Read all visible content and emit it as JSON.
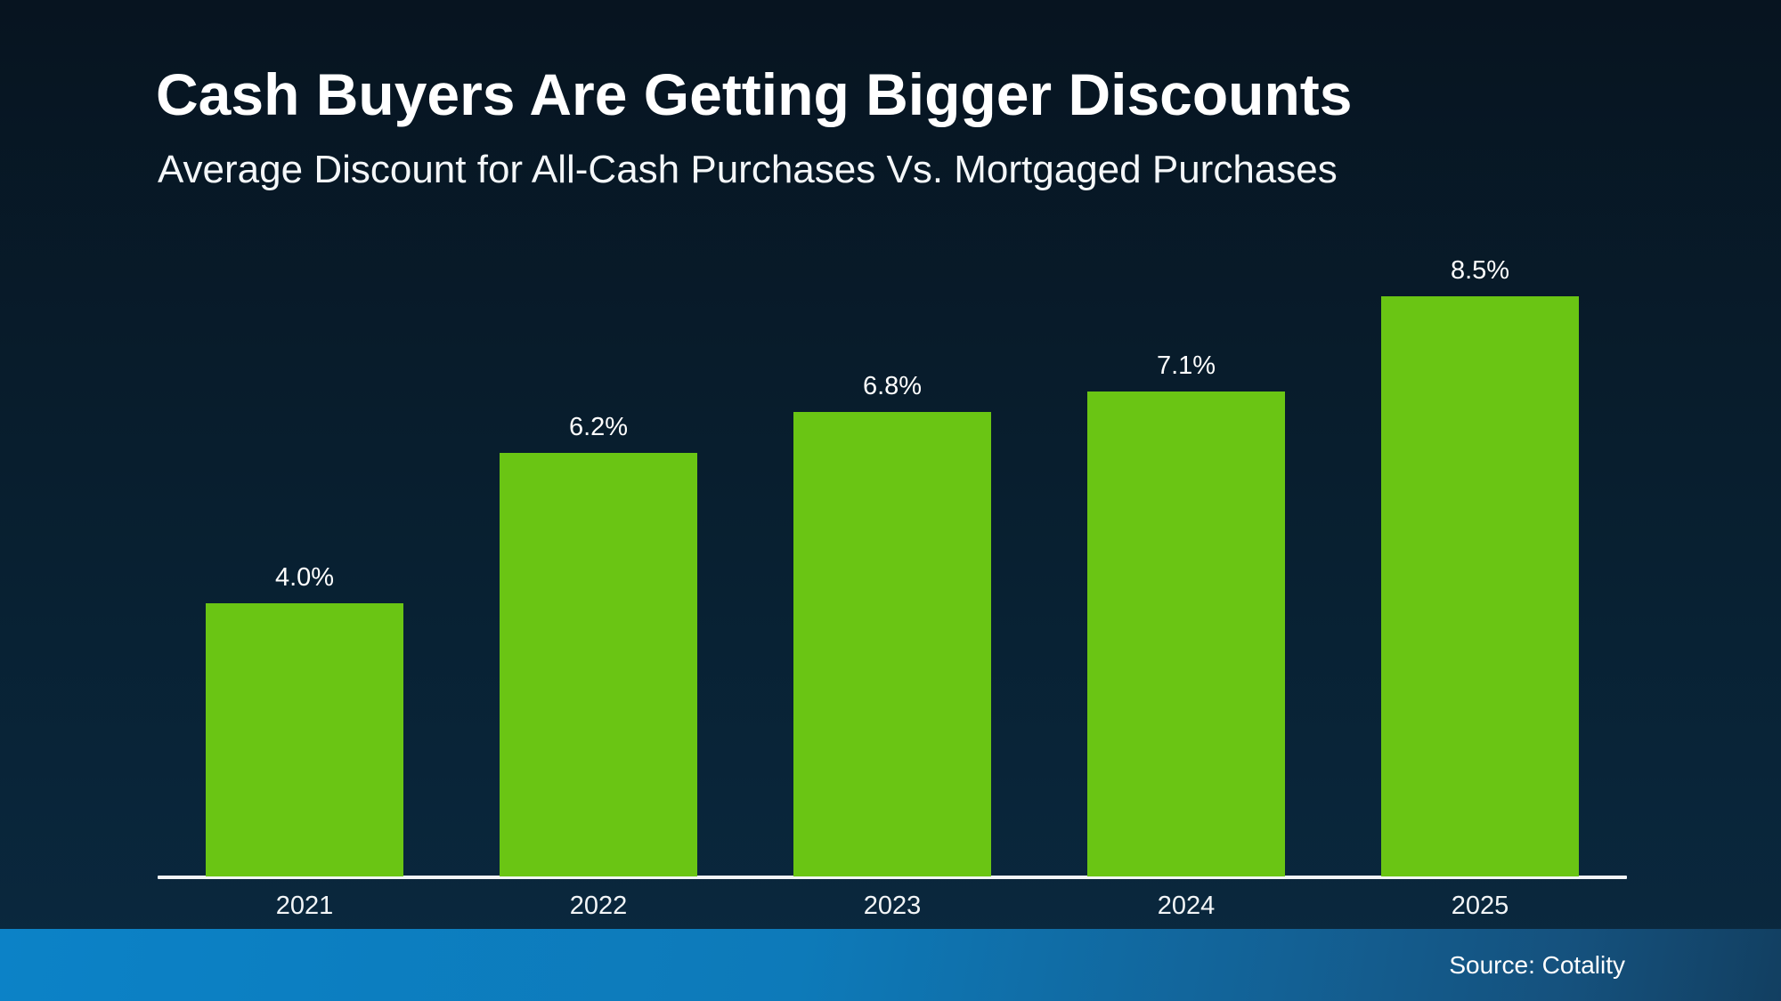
{
  "header": {
    "title": "Cash Buyers Are Getting Bigger Discounts",
    "subtitle": "Average Discount for All-Cash Purchases Vs. Mortgaged Purchases"
  },
  "footer": {
    "source": "Source: Cotality"
  },
  "colors": {
    "background_top": "#071420",
    "background_bottom": "#0a2940",
    "bar": "#6ac514",
    "axis": "#f3f5f7",
    "text": "#ffffff",
    "footer_left": "#0c82c7",
    "footer_right": "#123f61"
  },
  "chart_data": {
    "type": "bar",
    "title": "Cash Buyers Are Getting Bigger Discounts",
    "subtitle": "Average Discount for All-Cash Purchases Vs. Mortgaged Purchases",
    "categories": [
      "2021",
      "2022",
      "2023",
      "2024",
      "2025"
    ],
    "values": [
      4.0,
      6.2,
      6.8,
      7.1,
      8.5
    ],
    "value_labels": [
      "4.0%",
      "6.2%",
      "6.8%",
      "7.1%",
      "8.5%"
    ],
    "xlabel": "",
    "ylabel": "",
    "ylim": [
      0,
      8.5
    ],
    "grid": false,
    "legend": "none",
    "bar_color": "#6ac514",
    "source": "Source: Cotality"
  }
}
